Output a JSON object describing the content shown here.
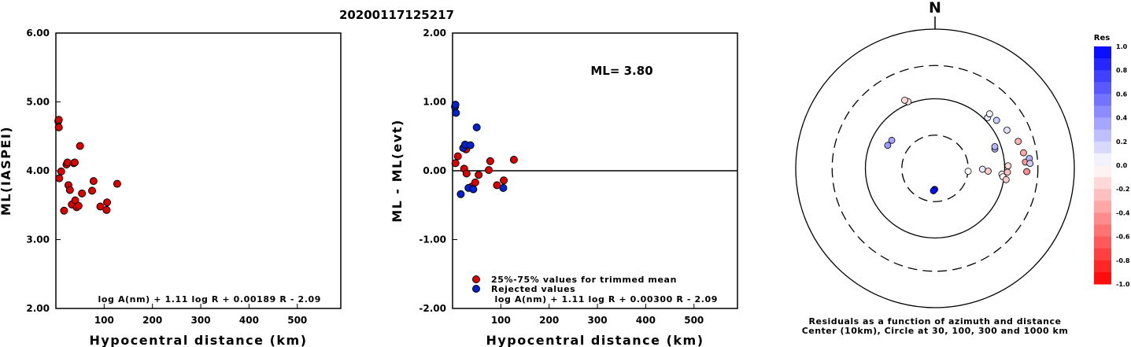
{
  "title": "20200117125217",
  "chart_data": [
    {
      "type": "scatter",
      "ylabel": "ML(IASPEI)",
      "xlabel": "Hypocentral distance (km)",
      "xlim": [
        0,
        590
      ],
      "ylim": [
        2.0,
        6.0
      ],
      "x_ticks": [
        "100",
        "200",
        "300",
        "400",
        "500"
      ],
      "x_tick_values": [
        100,
        200,
        300,
        400,
        500
      ],
      "y_ticks": [
        "2.00",
        "3.00",
        "4.00",
        "5.00",
        "6.00"
      ],
      "y_tick_values": [
        2.0,
        3.0,
        4.0,
        5.0,
        6.0
      ],
      "formula": "log A(nm) + 1.11 log R + 0.00189 R - 2.09",
      "marker_color": "#dd0000",
      "points": [
        [
          5,
          4.72
        ],
        [
          6,
          4.63
        ],
        [
          7,
          3.89
        ],
        [
          11,
          3.99
        ],
        [
          17,
          3.42
        ],
        [
          22,
          4.09
        ],
        [
          24,
          4.12
        ],
        [
          26,
          3.79
        ],
        [
          29,
          3.72
        ],
        [
          33,
          3.51
        ],
        [
          37,
          4.11
        ],
        [
          39,
          4.12
        ],
        [
          40,
          3.57
        ],
        [
          43,
          3.47
        ],
        [
          47,
          3.49
        ],
        [
          50,
          4.36
        ],
        [
          54,
          3.67
        ],
        [
          75,
          3.71
        ],
        [
          78,
          3.85
        ],
        [
          92,
          3.48
        ],
        [
          105,
          3.43
        ],
        [
          106,
          3.54
        ],
        [
          127,
          3.81
        ],
        [
          6,
          4.74
        ]
      ]
    },
    {
      "type": "scatter",
      "ylabel": "ML - ML(evt)",
      "xlabel": "Hypocentral distance (km)",
      "xlim": [
        0,
        590
      ],
      "ylim": [
        -2.0,
        2.0
      ],
      "x_ticks": [
        "100",
        "200",
        "300",
        "400",
        "500"
      ],
      "x_tick_values": [
        100,
        200,
        300,
        400,
        500
      ],
      "y_ticks": [
        "-2.00",
        "-1.00",
        "0.00",
        "1.00",
        "2.00"
      ],
      "y_tick_values": [
        -2.0,
        -1.0,
        0.0,
        1.0,
        2.0
      ],
      "zero_line": 0,
      "annotation": "ML= 3.80",
      "formula": "log A(nm) + 1.11 log R + 0.00300 R - 2.09",
      "legend": [
        {
          "label": "25%-75% values for trimmed mean",
          "color": "#dd0000"
        },
        {
          "label": "Rejected values",
          "color": "#0022cc"
        }
      ],
      "series": [
        {
          "name": "25%-75% values for trimmed mean",
          "color": "#dd0000",
          "points": [
            [
              6,
              0.11
            ],
            [
              11,
              0.21
            ],
            [
              24,
              0.03
            ],
            [
              29,
              -0.04
            ],
            [
              40,
              -0.23
            ],
            [
              47,
              -0.17
            ],
            [
              54,
              -0.06
            ],
            [
              75,
              0.01
            ],
            [
              78,
              0.14
            ],
            [
              92,
              -0.21
            ],
            [
              106,
              -0.14
            ],
            [
              127,
              0.16
            ],
            [
              28,
              0.31
            ]
          ]
        },
        {
          "name": "Rejected values",
          "color": "#0022cc",
          "points": [
            [
              5,
              0.93
            ],
            [
              6,
              0.96
            ],
            [
              7,
              0.84
            ],
            [
              17,
              -0.34
            ],
            [
              22,
              0.33
            ],
            [
              26,
              0.38
            ],
            [
              33,
              -0.25
            ],
            [
              37,
              0.37
            ],
            [
              43,
              -0.27
            ],
            [
              50,
              0.63
            ],
            [
              105,
              -0.25
            ]
          ]
        }
      ]
    },
    {
      "type": "polar-scatter",
      "north_label": "N",
      "caption_line1": "Residuals as a function of azimuth and distance",
      "caption_line2": "Center (10km), Circle at 30, 100, 300 and 1000 km",
      "rings_km": [
        30,
        100,
        300,
        1000
      ],
      "ring_styles": [
        "dashed",
        "solid",
        "dashed",
        "solid"
      ],
      "colorbar_title": "Res",
      "colorbar_ticks": [
        "1.0",
        "0.8",
        "0.6",
        "0.4",
        "0.2",
        "0.0",
        "-0.2",
        "-0.4",
        "-0.6",
        "-0.8",
        "-1.0"
      ],
      "colorbar_range": [
        -1.0,
        1.0
      ],
      "points": [
        {
          "az": 181,
          "dist_km": 20,
          "res": 1.0
        },
        {
          "az": 184,
          "dist_km": 21,
          "res": 0.96
        },
        {
          "az": 95,
          "dist_km": 30,
          "res": 0.0
        },
        {
          "az": 91,
          "dist_km": 48,
          "res": 0.1
        },
        {
          "az": 93,
          "dist_km": 58,
          "res": -0.2
        },
        {
          "az": 72,
          "dist_km": 80,
          "res": 0.3
        },
        {
          "az": 70,
          "dist_km": 82,
          "res": 0.3
        },
        {
          "az": 95,
          "dist_km": 92,
          "res": 0.0
        },
        {
          "az": 97,
          "dist_km": 96,
          "res": -0.05
        },
        {
          "az": 99,
          "dist_km": 108,
          "res": -0.2
        },
        {
          "az": 93,
          "dist_km": 110,
          "res": -0.25
        },
        {
          "az": 88,
          "dist_km": 112,
          "res": -0.15
        },
        {
          "az": 46,
          "dist_km": 112,
          "res": 0.08
        },
        {
          "az": 45,
          "dist_km": 128,
          "res": 0.05
        },
        {
          "az": 52,
          "dist_km": 132,
          "res": 0.2
        },
        {
          "az": 62,
          "dist_km": 148,
          "res": 0.12
        },
        {
          "az": 72,
          "dist_km": 180,
          "res": -0.3
        },
        {
          "az": 80,
          "dist_km": 195,
          "res": -0.35
        },
        {
          "az": 86,
          "dist_km": 200,
          "res": -0.4
        },
        {
          "az": 92,
          "dist_km": 208,
          "res": -0.45
        },
        {
          "az": 84,
          "dist_km": 230,
          "res": 0.3
        },
        {
          "az": 87,
          "dist_km": 232,
          "res": 0.2
        },
        {
          "az": 338,
          "dist_km": 108,
          "res": -0.1
        },
        {
          "az": 336,
          "dist_km": 118,
          "res": -0.15
        },
        {
          "az": 296,
          "dist_km": 57,
          "res": 0.4
        },
        {
          "az": 303,
          "dist_km": 55,
          "res": 0.36
        }
      ]
    }
  ]
}
